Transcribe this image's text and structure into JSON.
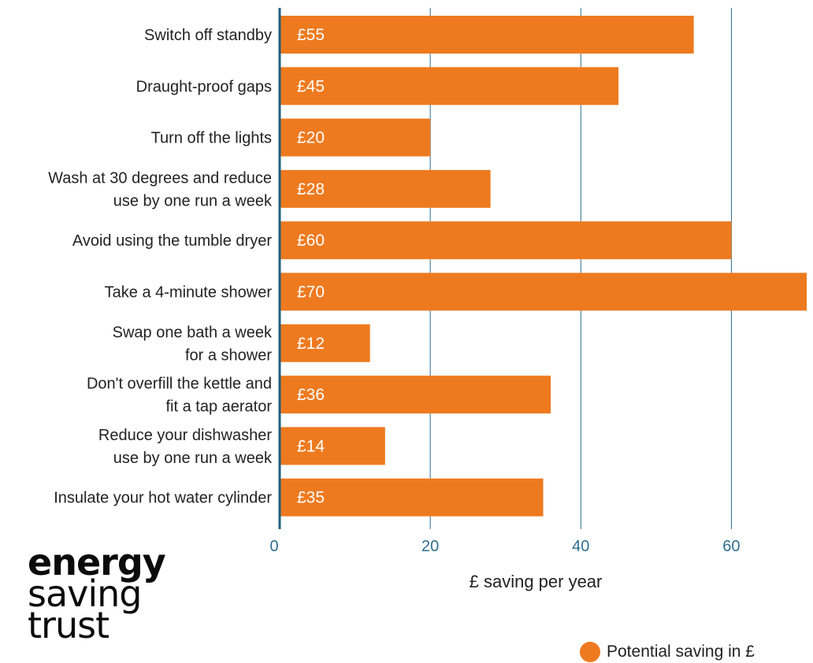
{
  "chart_data": {
    "type": "bar",
    "orientation": "horizontal",
    "categories": [
      [
        "Switch off standby"
      ],
      [
        "Draught-proof gaps"
      ],
      [
        "Turn off the lights"
      ],
      [
        "Wash at 30 degrees and reduce",
        "use by one run a week"
      ],
      [
        "Avoid using the tumble dryer"
      ],
      [
        "Take a 4-minute shower"
      ],
      [
        "Swap one bath a week",
        "for a shower"
      ],
      [
        "Don't overfill the kettle and",
        "fit a tap aerator"
      ],
      [
        "Reduce your dishwasher",
        "use by one run a week"
      ],
      [
        "Insulate your hot water cylinder"
      ]
    ],
    "values": [
      55,
      45,
      20,
      28,
      60,
      70,
      12,
      36,
      14,
      35
    ],
    "data_labels": [
      "£55",
      "£45",
      "£20",
      "£28",
      "£60",
      "£70",
      "£12",
      "£36",
      "£14",
      "£35"
    ],
    "series": [
      {
        "name": "Potential saving in £",
        "values": [
          55,
          45,
          20,
          28,
          60,
          70,
          12,
          36,
          14,
          35
        ]
      }
    ],
    "xlabel": "£ saving per year",
    "ylabel": "",
    "xlim": [
      0,
      70
    ],
    "xticks": [
      0,
      20,
      40,
      60
    ],
    "xtick_labels": [
      "0",
      "20",
      "40",
      "60"
    ],
    "grid": true,
    "legend_position": "bottom-right"
  },
  "colors": {
    "bar": "#ee7a1f",
    "gridline": "#2f6f8f",
    "axis": "#1f5f7f",
    "tick_text": "#2f6f8f"
  },
  "logo": {
    "line1": "energy",
    "line2": "saving",
    "line3": "trust"
  },
  "legend": {
    "label": "Potential saving in £"
  }
}
